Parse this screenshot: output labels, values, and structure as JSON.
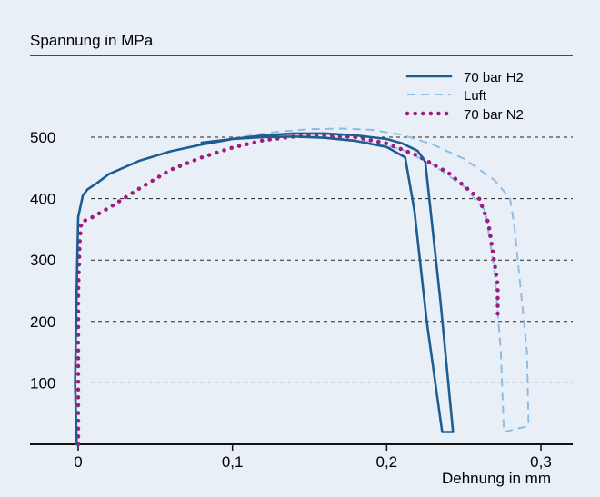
{
  "chart_data": {
    "type": "line",
    "ylabel": "Spannung in MPa",
    "xlabel": "Dehnung in mm",
    "xlim": [
      0,
      0.3
    ],
    "ylim": [
      0,
      500
    ],
    "x_ticks": [
      "0",
      "0,1",
      "0,2",
      "0,3"
    ],
    "y_ticks": [
      "100",
      "200",
      "300",
      "400",
      "500"
    ],
    "grid": "horizontal dashed",
    "legend_position": "top-right",
    "series": [
      {
        "name": "70 bar H2",
        "color": "#1f5d91",
        "style": "solid",
        "points": [
          [
            -0.001,
            0
          ],
          [
            -0.002,
            100
          ],
          [
            -0.001,
            250
          ],
          [
            0.0,
            370
          ],
          [
            0.003,
            405
          ],
          [
            0.006,
            415
          ],
          [
            0.012,
            425
          ],
          [
            0.02,
            440
          ],
          [
            0.04,
            462
          ],
          [
            0.06,
            477
          ],
          [
            0.08,
            488
          ],
          [
            0.1,
            497
          ],
          [
            0.12,
            503
          ],
          [
            0.14,
            506
          ],
          [
            0.16,
            506
          ],
          [
            0.18,
            503
          ],
          [
            0.2,
            497
          ],
          [
            0.21,
            490
          ],
          [
            0.22,
            478
          ],
          [
            0.225,
            460
          ],
          [
            0.235,
            230
          ],
          [
            0.243,
            20
          ],
          [
            0.236,
            20
          ],
          [
            0.226,
            200
          ],
          [
            0.218,
            380
          ],
          [
            0.212,
            467
          ],
          [
            0.2,
            484
          ],
          [
            0.18,
            494
          ],
          [
            0.16,
            499
          ],
          [
            0.14,
            501
          ],
          [
            0.12,
            500
          ],
          [
            0.1,
            497
          ],
          [
            0.08,
            491
          ]
        ]
      },
      {
        "name": "Luft",
        "color": "#8fbde2",
        "style": "dashed",
        "points": [
          [
            0.09,
            493
          ],
          [
            0.11,
            502
          ],
          [
            0.13,
            509
          ],
          [
            0.15,
            513
          ],
          [
            0.17,
            514
          ],
          [
            0.19,
            512
          ],
          [
            0.21,
            504
          ],
          [
            0.23,
            488
          ],
          [
            0.25,
            465
          ],
          [
            0.27,
            430
          ],
          [
            0.28,
            400
          ],
          [
            0.283,
            350
          ],
          [
            0.287,
            250
          ],
          [
            0.291,
            150
          ],
          [
            0.292,
            30
          ],
          [
            0.276,
            20
          ],
          [
            0.274,
            150
          ],
          [
            0.27,
            280
          ],
          [
            0.264,
            380
          ],
          [
            0.25,
            420
          ],
          [
            0.23,
            455
          ],
          [
            0.21,
            480
          ],
          [
            0.19,
            492
          ],
          [
            0.17,
            498
          ]
        ]
      },
      {
        "name": "70 bar N2",
        "color": "#9b1f7a",
        "style": "dotted",
        "points": [
          [
            0.0,
            0
          ],
          [
            0.0,
            50
          ],
          [
            0.0,
            150
          ],
          [
            0.0,
            250
          ],
          [
            0.001,
            330
          ],
          [
            0.002,
            362
          ],
          [
            0.008,
            368
          ],
          [
            0.02,
            385
          ],
          [
            0.04,
            417
          ],
          [
            0.06,
            447
          ],
          [
            0.08,
            467
          ],
          [
            0.1,
            483
          ],
          [
            0.12,
            495
          ],
          [
            0.14,
            501
          ],
          [
            0.16,
            503
          ],
          [
            0.18,
            500
          ],
          [
            0.2,
            490
          ],
          [
            0.22,
            470
          ],
          [
            0.24,
            442
          ],
          [
            0.26,
            400
          ],
          [
            0.266,
            360
          ],
          [
            0.269,
            310
          ],
          [
            0.272,
            260
          ],
          [
            0.272,
            210
          ]
        ]
      }
    ]
  }
}
